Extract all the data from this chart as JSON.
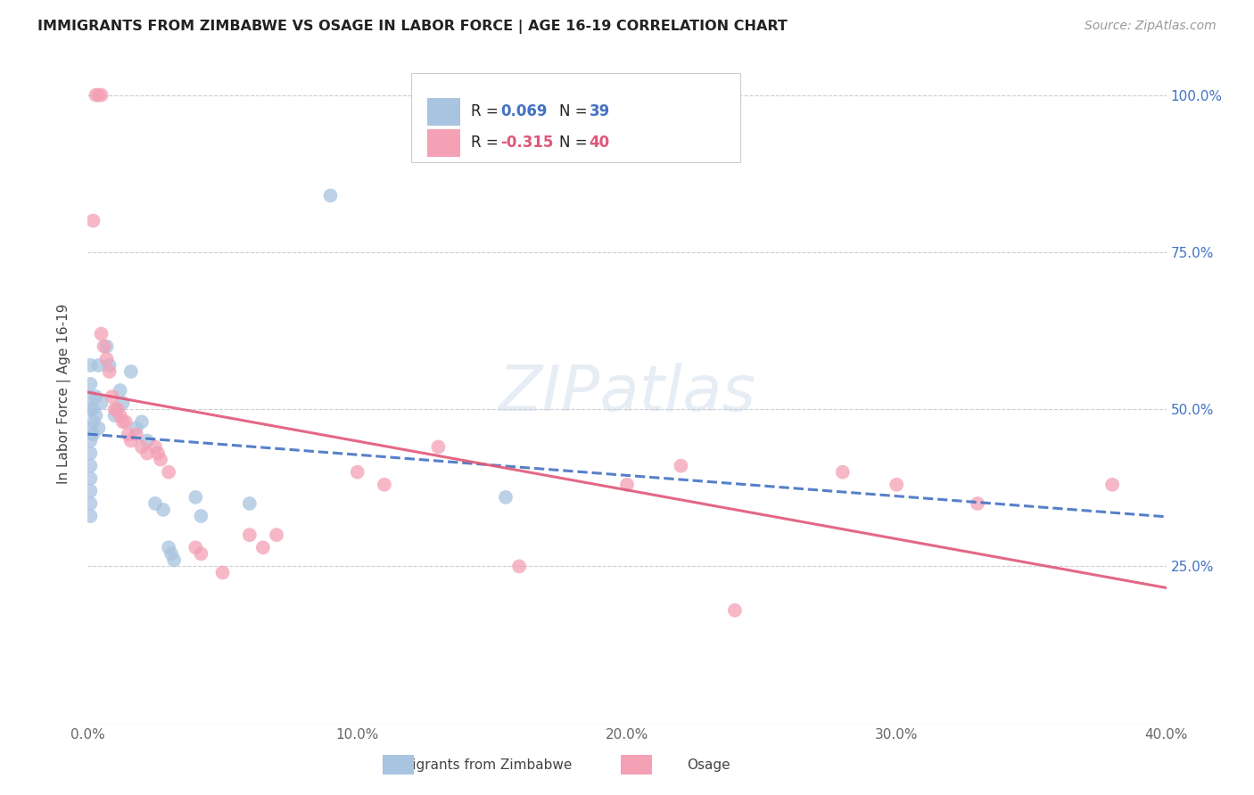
{
  "title": "IMMIGRANTS FROM ZIMBABWE VS OSAGE IN LABOR FORCE | AGE 16-19 CORRELATION CHART",
  "source": "Source: ZipAtlas.com",
  "ylabel": "In Labor Force | Age 16-19",
  "xlim": [
    0.0,
    0.4
  ],
  "ylim": [
    0.0,
    1.05
  ],
  "xtick_labels": [
    "0.0%",
    "10.0%",
    "20.0%",
    "30.0%",
    "40.0%"
  ],
  "xtick_values": [
    0.0,
    0.1,
    0.2,
    0.3,
    0.4
  ],
  "ytick_labels": [
    "25.0%",
    "50.0%",
    "75.0%",
    "100.0%"
  ],
  "ytick_values": [
    0.25,
    0.5,
    0.75,
    1.0
  ],
  "blue_color": "#a8c4e0",
  "pink_color": "#f4a0b5",
  "blue_line_color": "#4472c4",
  "pink_line_color": "#e05878",
  "watermark": "ZIPatlas",
  "background_color": "#ffffff",
  "grid_color": "#cccccc",
  "blue_points": [
    [
      0.001,
      0.57
    ],
    [
      0.001,
      0.54
    ],
    [
      0.001,
      0.52
    ],
    [
      0.001,
      0.5
    ],
    [
      0.001,
      0.47
    ],
    [
      0.001,
      0.45
    ],
    [
      0.001,
      0.43
    ],
    [
      0.001,
      0.41
    ],
    [
      0.001,
      0.39
    ],
    [
      0.001,
      0.37
    ],
    [
      0.001,
      0.35
    ],
    [
      0.001,
      0.33
    ],
    [
      0.002,
      0.5
    ],
    [
      0.002,
      0.48
    ],
    [
      0.002,
      0.46
    ],
    [
      0.003,
      0.52
    ],
    [
      0.003,
      0.49
    ],
    [
      0.004,
      0.57
    ],
    [
      0.004,
      0.47
    ],
    [
      0.005,
      0.51
    ],
    [
      0.007,
      0.6
    ],
    [
      0.008,
      0.57
    ],
    [
      0.01,
      0.49
    ],
    [
      0.012,
      0.53
    ],
    [
      0.013,
      0.51
    ],
    [
      0.016,
      0.56
    ],
    [
      0.018,
      0.47
    ],
    [
      0.02,
      0.48
    ],
    [
      0.022,
      0.45
    ],
    [
      0.025,
      0.35
    ],
    [
      0.028,
      0.34
    ],
    [
      0.03,
      0.28
    ],
    [
      0.031,
      0.27
    ],
    [
      0.032,
      0.26
    ],
    [
      0.04,
      0.36
    ],
    [
      0.042,
      0.33
    ],
    [
      0.06,
      0.35
    ],
    [
      0.09,
      0.84
    ],
    [
      0.155,
      0.36
    ]
  ],
  "pink_points": [
    [
      0.003,
      1.0
    ],
    [
      0.004,
      1.0
    ],
    [
      0.005,
      1.0
    ],
    [
      0.002,
      0.8
    ],
    [
      0.005,
      0.62
    ],
    [
      0.006,
      0.6
    ],
    [
      0.007,
      0.58
    ],
    [
      0.008,
      0.56
    ],
    [
      0.009,
      0.52
    ],
    [
      0.01,
      0.5
    ],
    [
      0.011,
      0.5
    ],
    [
      0.012,
      0.49
    ],
    [
      0.013,
      0.48
    ],
    [
      0.014,
      0.48
    ],
    [
      0.015,
      0.46
    ],
    [
      0.016,
      0.45
    ],
    [
      0.018,
      0.46
    ],
    [
      0.02,
      0.44
    ],
    [
      0.022,
      0.43
    ],
    [
      0.025,
      0.44
    ],
    [
      0.026,
      0.43
    ],
    [
      0.027,
      0.42
    ],
    [
      0.03,
      0.4
    ],
    [
      0.04,
      0.28
    ],
    [
      0.042,
      0.27
    ],
    [
      0.05,
      0.24
    ],
    [
      0.06,
      0.3
    ],
    [
      0.065,
      0.28
    ],
    [
      0.07,
      0.3
    ],
    [
      0.1,
      0.4
    ],
    [
      0.11,
      0.38
    ],
    [
      0.13,
      0.44
    ],
    [
      0.16,
      0.25
    ],
    [
      0.2,
      0.38
    ],
    [
      0.22,
      0.41
    ],
    [
      0.24,
      0.18
    ],
    [
      0.28,
      0.4
    ],
    [
      0.3,
      0.38
    ],
    [
      0.33,
      0.35
    ],
    [
      0.38,
      0.38
    ]
  ]
}
